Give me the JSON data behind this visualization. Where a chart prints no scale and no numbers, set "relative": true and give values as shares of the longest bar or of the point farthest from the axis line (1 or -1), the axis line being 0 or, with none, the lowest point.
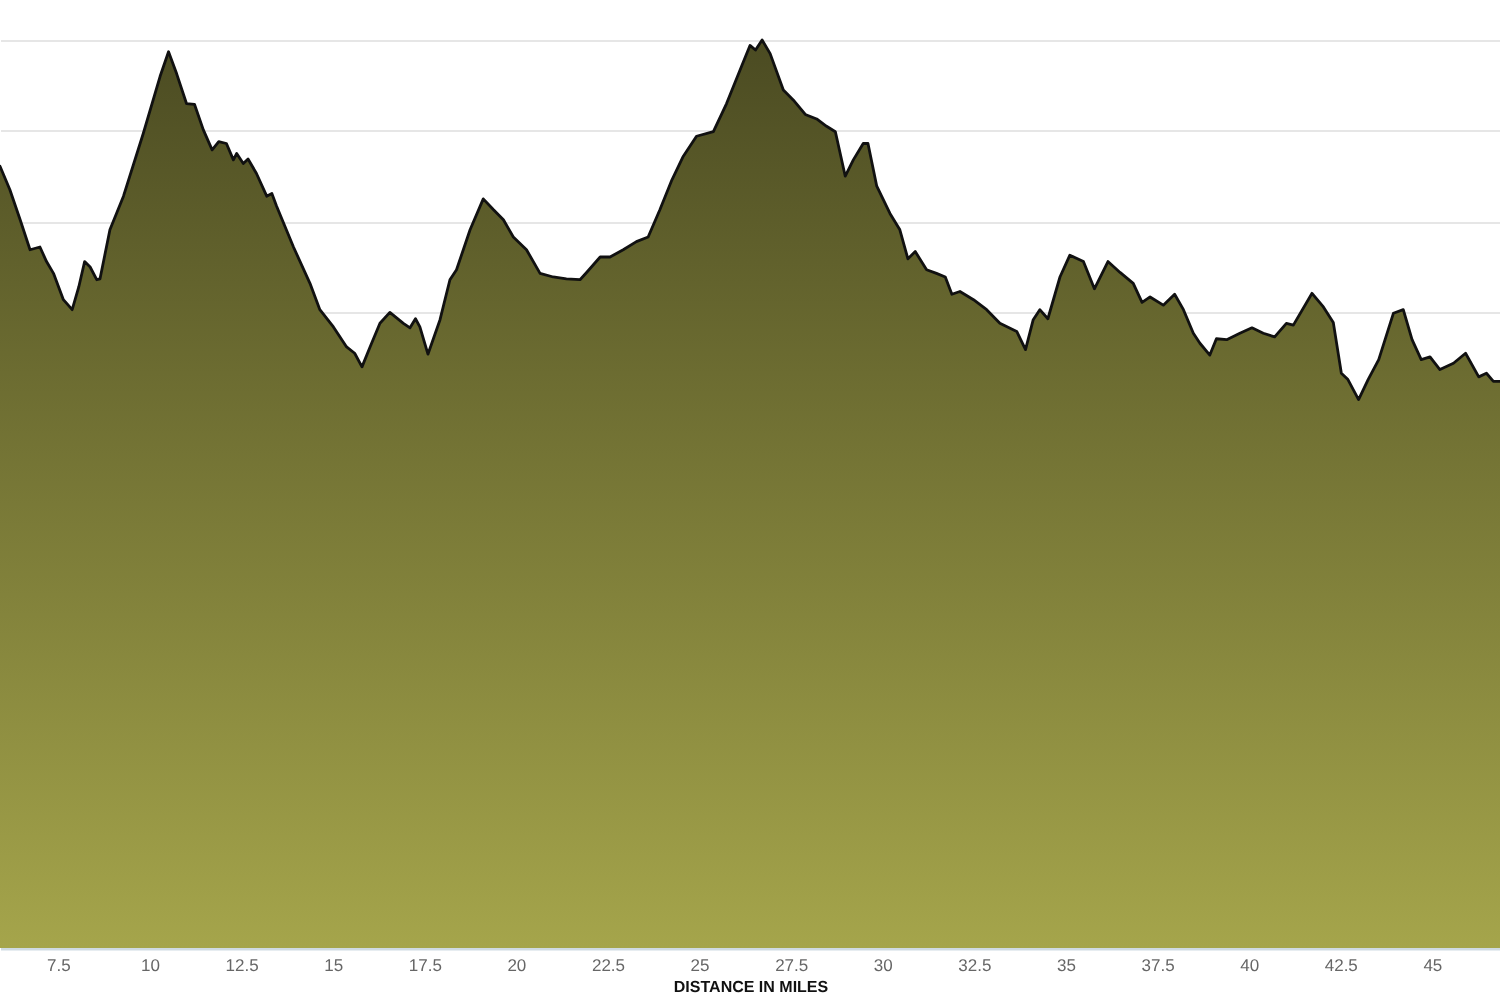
{
  "chart_data": {
    "type": "area",
    "xlabel": "DISTANCE IN MILES",
    "relative": true,
    "grid": "y",
    "xlim": [
      5.92,
      46.86
    ],
    "xticks": [
      7.5,
      10,
      12.5,
      15,
      17.5,
      20,
      22.5,
      25,
      27.5,
      30,
      32.5,
      35,
      37.5,
      40,
      42.5,
      45
    ],
    "x": [
      5.92,
      6.19,
      6.47,
      6.74,
      7.01,
      7.19,
      7.38,
      7.65,
      7.89,
      8.07,
      8.23,
      8.38,
      8.56,
      8.65,
      8.92,
      9.29,
      9.83,
      10.29,
      10.52,
      10.74,
      11.01,
      11.23,
      11.47,
      11.71,
      11.89,
      12.1,
      12.29,
      12.38,
      12.56,
      12.69,
      12.92,
      13.2,
      13.34,
      13.47,
      13.93,
      14.38,
      14.65,
      15.02,
      15.38,
      15.6,
      15.8,
      16.02,
      16.29,
      16.56,
      16.93,
      17.11,
      17.26,
      17.38,
      17.6,
      17.93,
      18.2,
      18.38,
      18.75,
      19.11,
      19.39,
      19.66,
      19.93,
      20.29,
      20.66,
      21.02,
      21.38,
      21.75,
      21.93,
      22.3,
      22.57,
      22.93,
      23.29,
      23.61,
      23.93,
      24.26,
      24.57,
      24.93,
      25.39,
      25.75,
      26.16,
      26.39,
      26.54,
      26.72,
      26.94,
      27.3,
      27.57,
      27.9,
      28.21,
      28.48,
      28.72,
      28.99,
      29.21,
      29.48,
      29.61,
      29.85,
      30.21,
      30.48,
      30.7,
      30.9,
      31.21,
      31.48,
      31.72,
      31.9,
      32.12,
      32.49,
      32.85,
      33.21,
      33.67,
      33.91,
      34.12,
      34.3,
      34.52,
      34.85,
      35.12,
      35.49,
      35.79,
      36.16,
      36.49,
      36.85,
      37.09,
      37.31,
      37.67,
      37.98,
      38.22,
      38.49,
      38.67,
      38.94,
      39.12,
      39.4,
      39.76,
      40.09,
      40.4,
      40.71,
      41.03,
      41.22,
      41.73,
      42.04,
      42.31,
      42.53,
      42.71,
      43.0,
      43.26,
      43.55,
      43.95,
      44.22,
      44.46,
      44.71,
      44.95,
      45.22,
      45.59,
      45.92,
      46.28,
      46.49,
      46.68,
      46.86
    ],
    "series": [
      {
        "color": "#4b4b22",
        "values": [
          0.861,
          0.835,
          0.802,
          0.769,
          0.772,
          0.756,
          0.743,
          0.714,
          0.703,
          0.728,
          0.756,
          0.75,
          0.736,
          0.737,
          0.791,
          0.828,
          0.897,
          0.96,
          0.987,
          0.963,
          0.93,
          0.929,
          0.901,
          0.879,
          0.888,
          0.886,
          0.868,
          0.875,
          0.864,
          0.869,
          0.853,
          0.828,
          0.831,
          0.817,
          0.772,
          0.732,
          0.703,
          0.684,
          0.662,
          0.655,
          0.64,
          0.662,
          0.688,
          0.7,
          0.688,
          0.683,
          0.693,
          0.684,
          0.654,
          0.692,
          0.736,
          0.747,
          0.791,
          0.825,
          0.813,
          0.802,
          0.783,
          0.769,
          0.743,
          0.739,
          0.737,
          0.736,
          0.744,
          0.761,
          0.761,
          0.769,
          0.778,
          0.783,
          0.813,
          0.846,
          0.872,
          0.894,
          0.899,
          0.93,
          0.971,
          0.994,
          0.989,
          1,
          0.985,
          0.945,
          0.934,
          0.918,
          0.913,
          0.905,
          0.899,
          0.85,
          0.868,
          0.886,
          0.886,
          0.839,
          0.809,
          0.791,
          0.759,
          0.767,
          0.747,
          0.743,
          0.739,
          0.72,
          0.723,
          0.714,
          0.703,
          0.688,
          0.679,
          0.659,
          0.692,
          0.703,
          0.693,
          0.739,
          0.763,
          0.756,
          0.726,
          0.756,
          0.744,
          0.732,
          0.711,
          0.717,
          0.708,
          0.72,
          0.703,
          0.677,
          0.666,
          0.653,
          0.671,
          0.67,
          0.677,
          0.683,
          0.677,
          0.673,
          0.688,
          0.686,
          0.721,
          0.706,
          0.689,
          0.633,
          0.626,
          0.604,
          0.626,
          0.648,
          0.699,
          0.703,
          0.67,
          0.648,
          0.651,
          0.637,
          0.644,
          0.655,
          0.629,
          0.633,
          0.624,
          0.624
        ]
      }
    ]
  }
}
